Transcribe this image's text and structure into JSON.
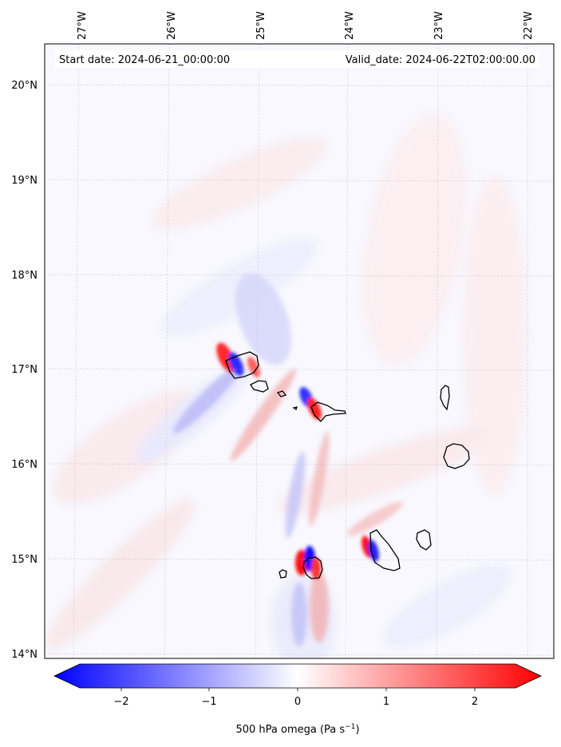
{
  "header": {
    "start_date": "Start date: 2024-06-21_00:00:00",
    "valid_date": "Valid_date: 2024-06-22T02:00:00.00"
  },
  "map": {
    "lon_labels": [
      "27°W",
      "26°W",
      "25°W",
      "24°W",
      "23°W",
      "22°W"
    ],
    "lat_labels": [
      "20°N",
      "19°N",
      "18°N",
      "17°N",
      "16°N",
      "15°N",
      "14°N"
    ],
    "gridlines": true,
    "field": "500 hPa vertical velocity (omega)"
  },
  "colorbar": {
    "ticks": [
      "−2",
      "−1",
      "0",
      "1",
      "2"
    ],
    "range": [
      -2.5,
      2.5
    ],
    "label_main": "500 hPa omega (Pa s",
    "label_exp": "−1",
    "label_end": ")",
    "colors": {
      "negative": "#0000ff",
      "zero": "#ffffff",
      "positive": "#ff0000"
    }
  }
}
